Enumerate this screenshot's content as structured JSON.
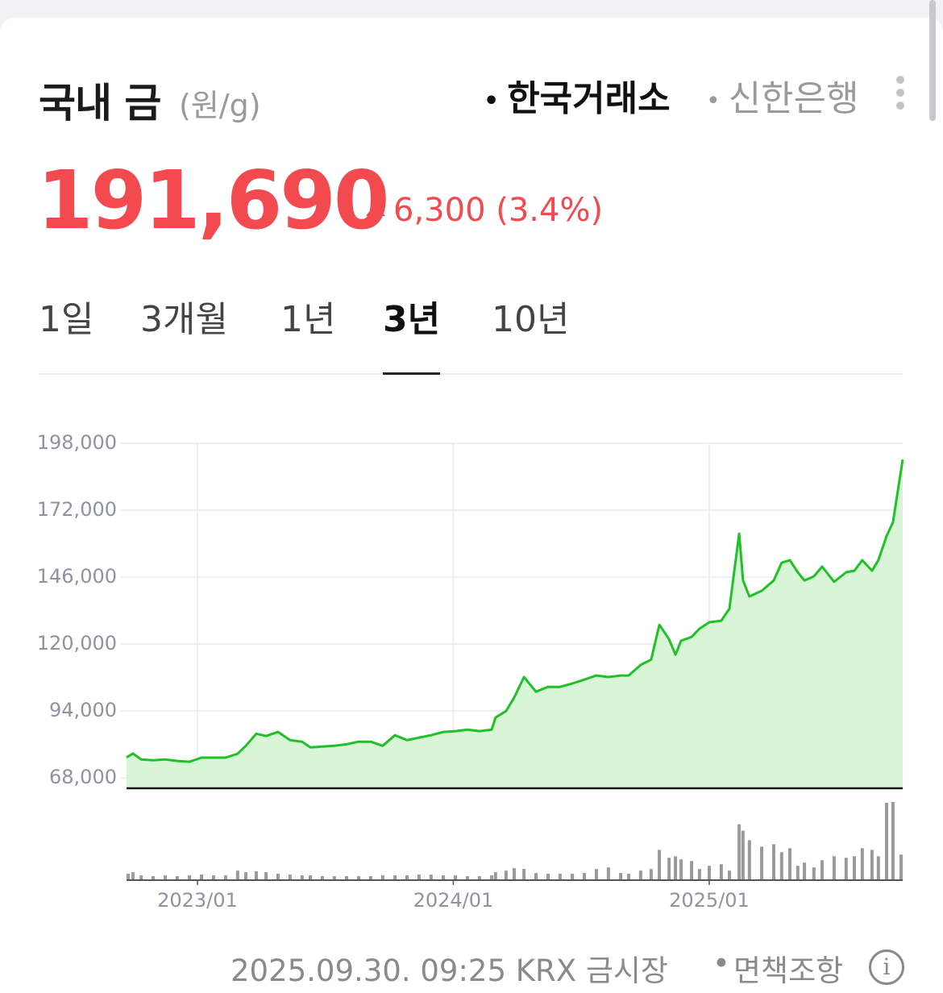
{
  "header": {
    "title": "국내 금",
    "unit": "(원/g)",
    "sources": [
      "한국거래소",
      "신한은행"
    ],
    "active_source": 0,
    "price": "191,690",
    "change": "6,300 (3.4%)"
  },
  "tabs": [
    "1일",
    "3개월",
    "1년",
    "3년",
    "10년"
  ],
  "active_tab": 3,
  "chart_data": [
    {
      "type": "area",
      "color": "#1fc127",
      "fill": "#d8f5d7",
      "x": [
        2022.723,
        2022.748,
        2022.78,
        2022.827,
        2022.874,
        2022.921,
        2022.969,
        2023.016,
        2023.063,
        2023.11,
        2023.157,
        2023.189,
        2023.23,
        2023.268,
        2023.315,
        2023.362,
        2023.409,
        2023.441,
        2023.488,
        2023.535,
        2023.583,
        2023.63,
        2023.677,
        2023.724,
        2023.772,
        2023.819,
        2023.866,
        2023.913,
        2023.961,
        2024.008,
        2024.055,
        2024.102,
        2024.15,
        2024.165,
        2024.206,
        2024.238,
        2024.276,
        2024.323,
        2024.37,
        2024.417,
        2024.465,
        2024.512,
        2024.559,
        2024.606,
        2024.654,
        2024.685,
        2024.732,
        2024.773,
        2024.805,
        2024.843,
        2024.868,
        2024.89,
        2024.931,
        2024.962,
        2025.0,
        2025.047,
        2025.079,
        2025.117,
        2025.132,
        2025.157,
        2025.205,
        2025.252,
        2025.283,
        2025.315,
        2025.346,
        2025.372,
        2025.409,
        2025.441,
        2025.488,
        2025.535,
        2025.567,
        2025.598,
        2025.636,
        2025.661,
        2025.693,
        2025.718,
        2025.756
      ],
      "values": [
        76000,
        77500,
        75200,
        74900,
        75200,
        74600,
        74300,
        75900,
        75900,
        75900,
        77400,
        80500,
        85200,
        84300,
        85900,
        82700,
        82100,
        79900,
        80200,
        80500,
        81100,
        82100,
        82100,
        80500,
        84600,
        82700,
        83700,
        84600,
        85900,
        86200,
        86800,
        86200,
        86800,
        91500,
        94000,
        99300,
        107200,
        101500,
        103400,
        103400,
        104700,
        106200,
        107800,
        107200,
        107800,
        107800,
        111900,
        114000,
        127500,
        121900,
        115900,
        121300,
        122800,
        126000,
        128500,
        129100,
        133800,
        162900,
        144700,
        138500,
        140700,
        144700,
        151600,
        152600,
        147900,
        144700,
        146300,
        150100,
        144200,
        147900,
        148500,
        152600,
        148500,
        152600,
        162000,
        167300,
        191690
      ],
      "xlim": [
        2022.723,
        2025.756
      ],
      "xticks": [
        2023,
        2024,
        2025
      ],
      "ylim": [
        64000,
        198000
      ],
      "yticks": [
        {
          "value": 68000,
          "label": "68,000"
        },
        {
          "value": 94000,
          "label": "94,000"
        },
        {
          "value": 120000,
          "label": "120,000"
        },
        {
          "value": 146000,
          "label": "146,000"
        },
        {
          "value": 172000,
          "label": "172,000"
        },
        {
          "value": 198000,
          "label": "198,000"
        }
      ],
      "grid": true
    },
    {
      "type": "bar",
      "color": "#9a9a9a",
      "x": [
        2022.723,
        2022.748,
        2022.78,
        2022.827,
        2022.874,
        2022.921,
        2022.969,
        2023.016,
        2023.063,
        2023.11,
        2023.157,
        2023.189,
        2023.23,
        2023.268,
        2023.315,
        2023.362,
        2023.409,
        2023.441,
        2023.488,
        2023.535,
        2023.583,
        2023.63,
        2023.677,
        2023.724,
        2023.772,
        2023.819,
        2023.866,
        2023.913,
        2023.961,
        2024.008,
        2024.055,
        2024.102,
        2024.15,
        2024.165,
        2024.206,
        2024.238,
        2024.276,
        2024.323,
        2024.37,
        2024.417,
        2024.465,
        2024.512,
        2024.559,
        2024.606,
        2024.654,
        2024.685,
        2024.732,
        2024.773,
        2024.805,
        2024.843,
        2024.868,
        2024.89,
        2024.931,
        2024.962,
        2025.0,
        2025.047,
        2025.079,
        2025.117,
        2025.132,
        2025.157,
        2025.205,
        2025.252,
        2025.283,
        2025.315,
        2025.346,
        2025.372,
        2025.409,
        2025.441,
        2025.488,
        2025.535,
        2025.567,
        2025.598,
        2025.636,
        2025.661,
        2025.693,
        2025.718,
        2025.756
      ],
      "values": [
        8,
        10,
        6,
        5,
        6,
        5,
        6,
        7,
        6,
        6,
        12,
        10,
        11,
        10,
        8,
        7,
        6,
        6,
        5,
        5,
        5,
        5,
        5,
        6,
        6,
        6,
        7,
        7,
        6,
        6,
        5,
        5,
        6,
        10,
        12,
        15,
        14,
        9,
        8,
        8,
        8,
        9,
        14,
        16,
        9,
        8,
        12,
        14,
        38,
        28,
        30,
        26,
        24,
        14,
        18,
        20,
        12,
        70,
        62,
        50,
        42,
        45,
        35,
        40,
        18,
        22,
        16,
        25,
        30,
        28,
        30,
        40,
        38,
        30,
        97,
        98,
        32
      ],
      "xlim": [
        2022.723,
        2025.756
      ],
      "ylim": [
        0,
        100
      ],
      "xticks": [
        {
          "value": 2023,
          "label": "2023/01"
        },
        {
          "value": 2024,
          "label": "2024/01"
        },
        {
          "value": 2025,
          "label": "2025/01"
        }
      ]
    }
  ],
  "footer": {
    "timestamp": "2025.09.30. 09:25 KRX 금시장",
    "disclaimer": "면책조항"
  }
}
